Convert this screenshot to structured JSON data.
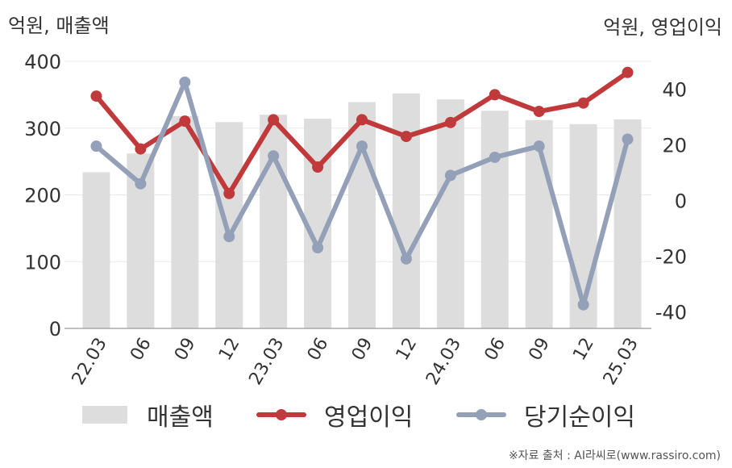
{
  "units": {
    "left": "억원, 매출액",
    "right": "억원, 영업이익"
  },
  "legend": {
    "revenue": "매출액",
    "operating_profit": "영업이익",
    "net_income": "당기순이익"
  },
  "source": "※자료 출처 : AI라씨로(www.rassiro.com)",
  "colors": {
    "revenue_bar": "#dddddd",
    "operating_profit": "#c0393b",
    "net_income": "#93a0b8"
  },
  "chart_data": {
    "type": "bar+line",
    "categories": [
      "22.03",
      "06",
      "09",
      "12",
      "23.03",
      "06",
      "09",
      "12",
      "24.03",
      "06",
      "09",
      "12",
      "25.03"
    ],
    "left_axis": {
      "ylim": [
        0,
        400
      ],
      "ticks": [
        "0",
        "100",
        "200",
        "300",
        "400"
      ]
    },
    "right_axis": {
      "ylim": [
        -46,
        50
      ],
      "ticks": [
        "-40",
        "-20",
        "0",
        "20",
        "40"
      ]
    },
    "grid": true,
    "legend_position": "bottom",
    "series": [
      {
        "name": "매출액",
        "type": "bar",
        "axis": "left",
        "values": [
          234,
          262,
          318,
          309,
          320,
          314,
          339,
          352,
          343,
          326,
          312,
          306,
          313
        ]
      },
      {
        "name": "영업이익",
        "type": "line",
        "axis": "right",
        "values": [
          37.5,
          18.5,
          28.5,
          2.5,
          29,
          12,
          29,
          23,
          28,
          38,
          32,
          35,
          46
        ]
      },
      {
        "name": "당기순이익",
        "type": "line",
        "axis": "right",
        "values": [
          19.5,
          6,
          42.5,
          -13,
          16,
          -17,
          19.5,
          -21,
          9,
          15.5,
          19.5,
          -37.5,
          22
        ]
      }
    ]
  }
}
